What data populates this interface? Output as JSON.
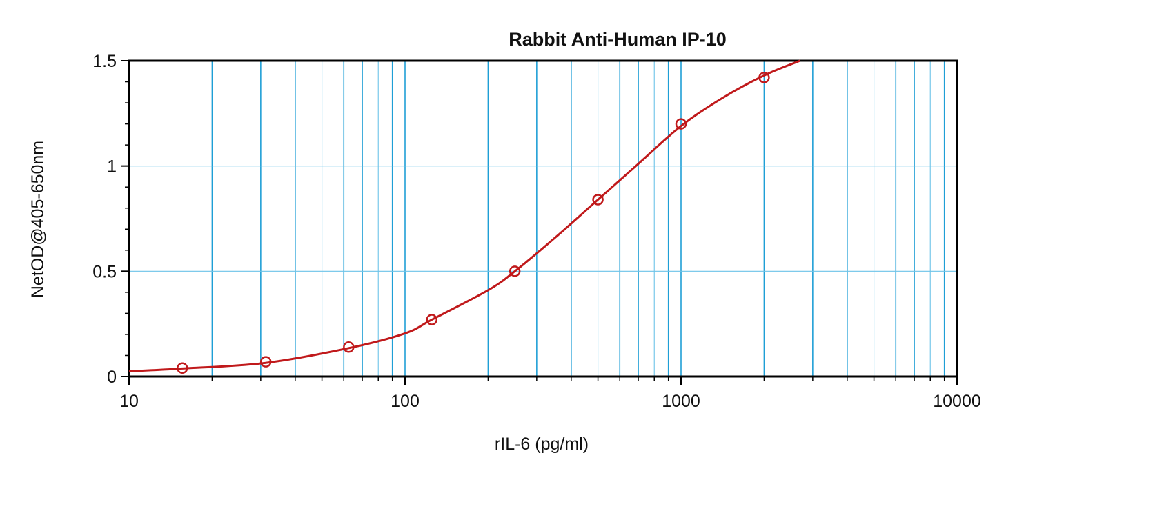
{
  "chart_data": {
    "type": "scatter",
    "title": "Rabbit Anti-Human IP-10",
    "xlabel": "rIL-6 (pg/ml)",
    "ylabel": "NetOD@405-650nm",
    "x_scale": "log",
    "xlim": [
      10,
      10000
    ],
    "ylim": [
      0,
      1.5
    ],
    "x_ticks": [
      10,
      100,
      1000,
      10000
    ],
    "x_tick_labels": [
      "10",
      "100",
      "1000",
      "10000"
    ],
    "y_ticks": [
      0,
      0.5,
      1,
      1.5
    ],
    "y_tick_labels": [
      "0",
      "0.5",
      "1",
      "1.5"
    ],
    "grid": true,
    "series": [
      {
        "points": [
          {
            "x": 15.6,
            "y": 0.04
          },
          {
            "x": 31.3,
            "y": 0.07
          },
          {
            "x": 62.5,
            "y": 0.14
          },
          {
            "x": 125,
            "y": 0.27
          },
          {
            "x": 250,
            "y": 0.5
          },
          {
            "x": 500,
            "y": 0.84
          },
          {
            "x": 1000,
            "y": 1.2
          },
          {
            "x": 2000,
            "y": 1.42
          }
        ],
        "fit_curve": {
          "x": [
            10,
            15.6,
            31.3,
            62.5,
            100,
            125,
            200,
            250,
            350,
            500,
            700,
            1000,
            1400,
            2000,
            2700
          ],
          "y": [
            0.025,
            0.038,
            0.065,
            0.135,
            0.205,
            0.27,
            0.41,
            0.5,
            0.66,
            0.84,
            1.01,
            1.19,
            1.32,
            1.43,
            1.5
          ]
        }
      }
    ],
    "colors": {
      "series": "#c0191b",
      "major_grid": "#1f9fd6",
      "minor_grid": "#6cc3e8",
      "axis": "#000000"
    }
  }
}
